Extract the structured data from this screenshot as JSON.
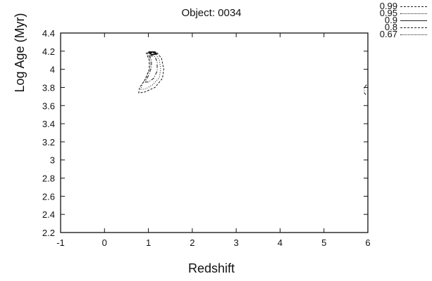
{
  "chart_data": {
    "type": "contour",
    "title": "Object: 0034",
    "xlabel": "Redshift",
    "ylabel": "Log Age (Myr)",
    "xlim": [
      -1,
      6
    ],
    "ylim": [
      2.2,
      4.4
    ],
    "x_ticks": [
      "-1",
      "0",
      "1",
      "2",
      "3",
      "4",
      "5",
      "6"
    ],
    "y_ticks": [
      "2.2",
      "2.4",
      "2.6",
      "2.8",
      "3",
      "3.2",
      "3.4",
      "3.6",
      "3.8",
      "4",
      "4.2",
      "4.4"
    ],
    "legend": {
      "placement": "top-right",
      "entries": [
        {
          "label": "0.99",
          "style": "dashed"
        },
        {
          "label": "0.95",
          "style": "dotted"
        },
        {
          "label": "0.9",
          "style": "solid"
        },
        {
          "label": "0.8",
          "style": "dash-dot"
        },
        {
          "label": "0.67",
          "style": "dash-dot-dot"
        }
      ]
    },
    "contours": [
      {
        "level": "0.99",
        "points": [
          [
            0.95,
            4.18
          ],
          [
            1.2,
            4.18
          ],
          [
            1.3,
            4.12
          ],
          [
            1.35,
            4.0
          ],
          [
            1.32,
            3.9
          ],
          [
            1.15,
            3.8
          ],
          [
            0.92,
            3.75
          ],
          [
            0.78,
            3.74
          ],
          [
            0.8,
            3.8
          ],
          [
            0.92,
            3.88
          ],
          [
            1.02,
            4.0
          ],
          [
            1.02,
            4.1
          ],
          [
            0.95,
            4.18
          ]
        ]
      },
      {
        "level": "0.95",
        "points": [
          [
            0.98,
            4.17
          ],
          [
            1.18,
            4.16
          ],
          [
            1.25,
            4.1
          ],
          [
            1.28,
            4.0
          ],
          [
            1.25,
            3.91
          ],
          [
            1.1,
            3.83
          ],
          [
            0.92,
            3.78
          ],
          [
            0.83,
            3.78
          ],
          [
            0.86,
            3.84
          ],
          [
            0.96,
            3.92
          ],
          [
            1.04,
            4.02
          ],
          [
            1.04,
            4.1
          ],
          [
            0.98,
            4.17
          ]
        ]
      },
      {
        "level": "0.9",
        "points": [
          [
            1.0,
            4.19
          ],
          [
            1.15,
            4.19
          ],
          [
            1.18,
            4.17
          ],
          [
            1.08,
            4.16
          ],
          [
            1.0,
            4.19
          ]
        ]
      },
      {
        "level": "0.8",
        "points": [
          [
            1.02,
            4.15
          ],
          [
            1.15,
            4.14
          ],
          [
            1.2,
            4.08
          ],
          [
            1.2,
            3.98
          ],
          [
            1.12,
            3.9
          ],
          [
            1.0,
            3.86
          ],
          [
            0.93,
            3.86
          ],
          [
            1.0,
            3.93
          ],
          [
            1.07,
            4.02
          ],
          [
            1.07,
            4.1
          ],
          [
            1.02,
            4.15
          ]
        ]
      },
      {
        "level": "0.67",
        "points": [
          [
            5.97,
            3.83
          ],
          [
            5.92,
            3.8
          ],
          [
            5.92,
            3.74
          ],
          [
            5.97,
            3.71
          ]
        ]
      }
    ],
    "grid": false
  }
}
